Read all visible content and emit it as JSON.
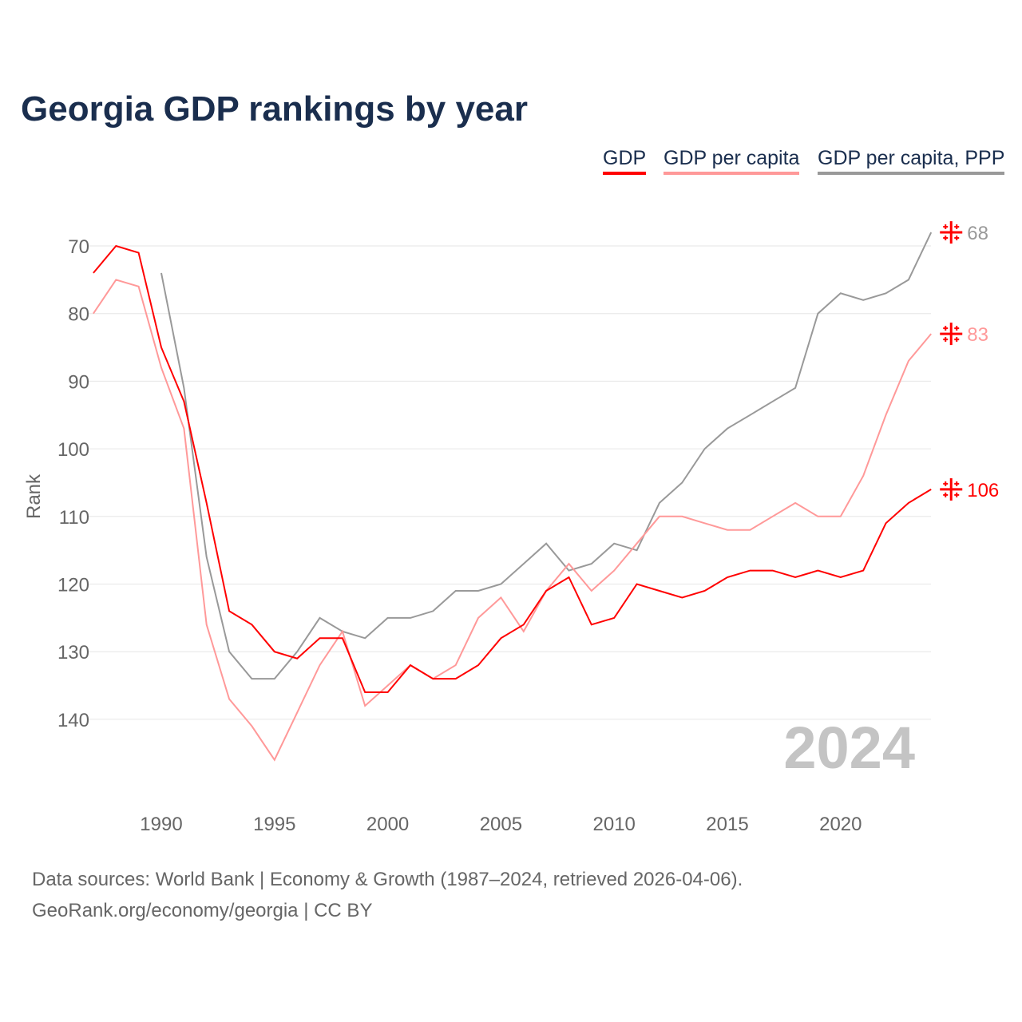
{
  "title": "Georgia GDP rankings by year",
  "footer": {
    "line1": "Data sources: World Bank | Economy & Growth (1987–2024, retrieved 2026-04-06).",
    "line2": "GeoRank.org/economy/georgia | CC BY"
  },
  "chart_data": {
    "type": "line",
    "title": "Georgia GDP rankings by year",
    "xlabel": "",
    "ylabel": "Rank",
    "ylim": [
      70,
      150
    ],
    "y_inverted": true,
    "xlim": [
      1987,
      2024
    ],
    "yticks": [
      70,
      80,
      90,
      100,
      110,
      120,
      130,
      140
    ],
    "xticks": [
      1990,
      1995,
      2000,
      2005,
      2010,
      2015,
      2020
    ],
    "watermark": "2024",
    "legend_position": "top-right",
    "x": [
      1987,
      1988,
      1989,
      1990,
      1991,
      1992,
      1993,
      1994,
      1995,
      1996,
      1997,
      1998,
      1999,
      2000,
      2001,
      2002,
      2003,
      2004,
      2005,
      2006,
      2007,
      2008,
      2009,
      2010,
      2011,
      2012,
      2013,
      2014,
      2015,
      2016,
      2017,
      2018,
      2019,
      2020,
      2021,
      2022,
      2023,
      2024
    ],
    "series": [
      {
        "name": "GDP",
        "color": "#ff0000",
        "end_label": "106",
        "values": [
          74,
          70,
          71,
          85,
          93,
          108,
          124,
          126,
          130,
          131,
          128,
          128,
          136,
          136,
          132,
          134,
          134,
          132,
          128,
          126,
          121,
          119,
          126,
          125,
          120,
          121,
          122,
          121,
          119,
          118,
          118,
          119,
          118,
          119,
          118,
          111,
          108,
          106
        ]
      },
      {
        "name": "GDP per capita",
        "color": "#ff9999",
        "end_label": "83",
        "values": [
          80,
          75,
          76,
          88,
          97,
          126,
          137,
          141,
          146,
          139,
          132,
          127,
          138,
          135,
          132,
          134,
          132,
          125,
          122,
          127,
          121,
          117,
          121,
          118,
          114,
          110,
          110,
          111,
          112,
          112,
          110,
          108,
          110,
          110,
          104,
          95,
          87,
          83
        ]
      },
      {
        "name": "GDP per capita, PPP",
        "color": "#999999",
        "end_label": "68",
        "values": [
          null,
          null,
          null,
          74,
          91,
          116,
          130,
          134,
          134,
          130,
          125,
          127,
          128,
          125,
          125,
          124,
          121,
          121,
          120,
          117,
          114,
          118,
          117,
          114,
          115,
          108,
          105,
          100,
          97,
          95,
          93,
          91,
          80,
          77,
          78,
          77,
          75,
          68
        ]
      }
    ]
  }
}
